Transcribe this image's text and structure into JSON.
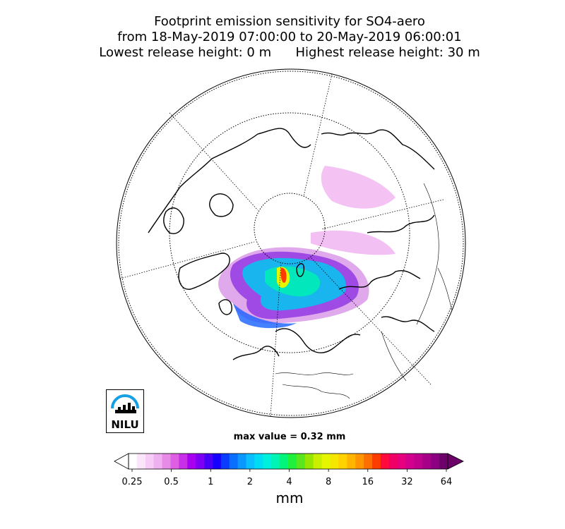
{
  "title": {
    "line1": "Footprint emission sensitivity for SO4-aero",
    "line2": "from 18-May-2019 07:00:00 to 20-May-2019 06:00:01",
    "line3": "Lowest release height: 0 m      Highest release height: 30 m"
  },
  "max_value_text": "max value = 0.32 mm",
  "logo": {
    "text": "NILU",
    "icon": "nilu-logo-icon"
  },
  "colorbar": {
    "unit": "mm",
    "tick_labels": [
      "0.25",
      "0.5",
      "1",
      "2",
      "4",
      "8",
      "16",
      "32",
      "64"
    ],
    "colors": [
      "#ffffff",
      "#fbe5fb",
      "#f6ccf6",
      "#efb0ef",
      "#e88be8",
      "#df5fe4",
      "#c72fe8",
      "#a800f0",
      "#7d00f5",
      "#4800f8",
      "#1600ff",
      "#0a3cff",
      "#0a6eff",
      "#0a98ff",
      "#0abeff",
      "#00dcf5",
      "#00f0e0",
      "#00f5b4",
      "#00f57a",
      "#1ef03c",
      "#5ae61e",
      "#96e600",
      "#c8f000",
      "#e6f500",
      "#f5e600",
      "#ffd200",
      "#ffb400",
      "#ff9600",
      "#ff6e00",
      "#ff3c00",
      "#ff0a3c",
      "#f00064",
      "#e6007d",
      "#d2008c",
      "#be008c",
      "#a50087",
      "#8c0082",
      "#6e0069"
    ]
  },
  "chart_data": {
    "type": "heatmap",
    "title": "Footprint emission sensitivity for SO4-aero",
    "colorbar_scale": "log2",
    "colorbar_range": [
      0.25,
      64
    ],
    "colorbar_unit": "mm",
    "max_value": 0.32
  }
}
